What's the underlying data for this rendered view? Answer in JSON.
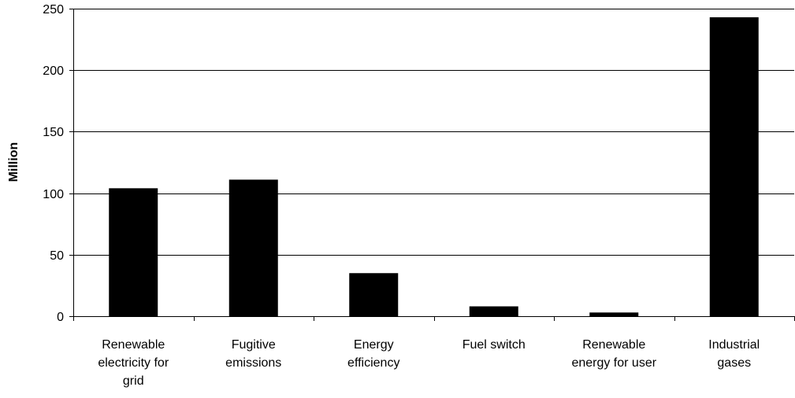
{
  "chart_data": {
    "type": "bar",
    "title": "",
    "xlabel": "",
    "ylabel": "Million",
    "categories": [
      [
        "Renewable",
        "electricity for",
        "grid"
      ],
      [
        "Fugitive",
        "emissions"
      ],
      [
        "Energy",
        "efficiency"
      ],
      [
        "Fuel switch"
      ],
      [
        "Renewable",
        "energy for user"
      ],
      [
        "Industrial",
        "gases"
      ]
    ],
    "values": [
      104,
      111,
      35,
      8,
      3,
      243
    ],
    "ylim": [
      0,
      250
    ],
    "yticks": [
      0,
      50,
      100,
      150,
      200,
      250
    ],
    "grid": true,
    "legend": "none",
    "colors": {
      "bar": "#000000",
      "grid": "#000000",
      "axis": "#000000",
      "background": "#ffffff"
    }
  }
}
